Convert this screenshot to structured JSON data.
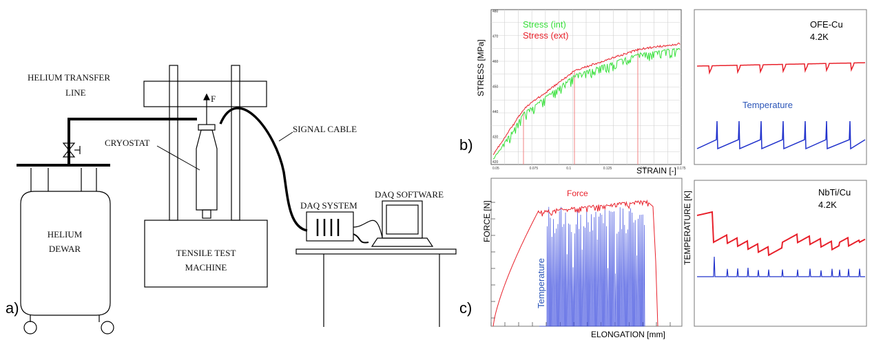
{
  "panel_a": {
    "label": "a)",
    "helium_transfer_line": [
      "HELIUM TRANSFER",
      "LINE"
    ],
    "force_label": "F",
    "cryostat": "CRYOSTAT",
    "signal_cable": "SIGNAL CABLE",
    "helium_dewar": [
      "HELIUM",
      "DEWAR"
    ],
    "tensile_test_machine": [
      "TENSILE TEST",
      "MACHINE"
    ],
    "daq_system": "DAQ SYSTEM",
    "daq_software": "DAQ SOFTWARE"
  },
  "panel_b": {
    "label": "b)",
    "xlabel": "STRAIN [-]",
    "ylabel": "STRESS [MPa]",
    "legend": [
      "Stress (int)",
      "Stress (ext)"
    ],
    "xticks": [
      "0.05",
      "0.075",
      "0.1",
      "0.125",
      "0.15",
      "0.175"
    ],
    "yticks": [
      "420",
      "430",
      "440",
      "450",
      "460",
      "470",
      "480"
    ],
    "side_title": [
      "OFE-Cu",
      "4.2K"
    ],
    "side_series": "Temperature"
  },
  "panel_c": {
    "label": "c)",
    "xlabel": "ELONGATION [mm]",
    "ylabel": "FORCE [N]",
    "ylabel_right": "TEMPERATURE [K]",
    "series_force": "Force",
    "series_temp": "Temperature",
    "side_title": [
      "NbTi/Cu",
      "4.2K"
    ]
  },
  "colors": {
    "force": "#e8202a",
    "temperature": "#2233cc",
    "stress_int": "#37e03a",
    "stress_ext": "#e8202a",
    "line": "#000000"
  }
}
